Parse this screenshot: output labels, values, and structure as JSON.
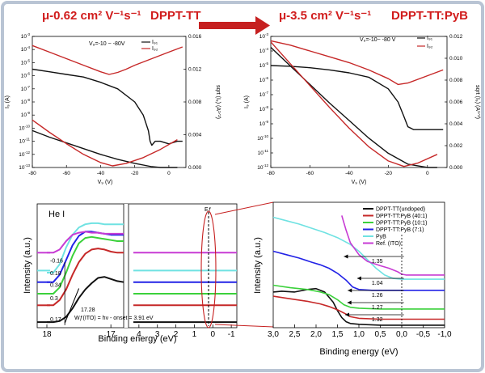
{
  "colors": {
    "black": "#111111",
    "red": "#c62828",
    "green": "#3bd13b",
    "blue": "#2222e6",
    "cyan": "#6fe2e2",
    "magenta": "#c73bd4",
    "arrow": "#c62020"
  },
  "top_left": {
    "mobility_label": "μ-0.62 cm² V⁻¹s⁻¹",
    "material_label": "DPPT-TT",
    "vg_label": "V₉=-10 ~ -80V",
    "xlabel": "V₉ (V)",
    "ylabel": "I₉ (A)",
    "ylabel_right": "sqrt (I₉) (A¹ᐟ²)",
    "legend": [
      "I₉₁",
      "I₉₂"
    ]
  },
  "top_right": {
    "mobility_label": "μ-3.5 cm² V⁻¹s⁻¹",
    "material_label": "DPPT-TT:PyB",
    "vg_label": "V₉=-10~ -80 V",
    "xlabel": "V₉ (V)",
    "ylabel": "I₉ (A)",
    "ylabel_right": "sqrt (I₉) (A¹ᐟ²)",
    "legend": [
      "I₉₁",
      "I₉₂"
    ]
  },
  "bottom_left": {
    "panel_label": "He I",
    "xlabel": "Binding energy (eV)",
    "ylabel": "Intensity (a.u.)",
    "ef_label": "Eƒ",
    "cutoff_labels": [
      "-0.16",
      "0.18",
      "0.34",
      "0.3",
      "0.17"
    ],
    "onset_value": "17.28",
    "wf_label": "Wƒ(ITO) = hν - onset = 3.91 eV"
  },
  "bottom_right": {
    "xlabel": "Binding energy (eV)",
    "ylabel": "Intensity (a.u.)",
    "onset_labels": [
      "1.35",
      "1.04",
      "1.26",
      "1.27",
      "1.32"
    ]
  },
  "chart_data": [
    {
      "type": "line",
      "name_id": "transfer-dppt-tt",
      "xlim": [
        -80,
        10
      ],
      "ylim_log": [
        -13,
        -3
      ],
      "ylim_right": [
        0,
        0.016
      ],
      "x_ticks": [
        -80,
        -60,
        -40,
        -20,
        0
      ],
      "y_ticks_exp": [
        -3,
        -4,
        -5,
        -6,
        -7,
        -8,
        -9,
        -10,
        -11,
        -12,
        -13
      ],
      "y_right_ticks": [
        0.0,
        0.004,
        0.008,
        0.012,
        0.016
      ],
      "series": [
        {
          "color": "black",
          "axis": "log",
          "x": [
            -80,
            -70,
            -60,
            -50,
            -40,
            -30,
            -20,
            -15,
            -12,
            -11,
            -10,
            -8,
            -5,
            0,
            5,
            8
          ],
          "y": [
            -5.5,
            -5.7,
            -5.9,
            -6.1,
            -6.5,
            -7.0,
            -8.0,
            -9.0,
            -10.2,
            -11.0,
            -11.3,
            -11.0,
            -11.0,
            -11.2,
            -11.0,
            -11.0
          ]
        },
        {
          "color": "red",
          "axis": "log",
          "x": [
            -80,
            -70,
            -60,
            -50,
            -40,
            -35,
            -30,
            -25,
            -20,
            -10,
            0,
            8
          ],
          "y": [
            -3.7,
            -4.2,
            -4.7,
            -5.2,
            -5.7,
            -5.9,
            -5.75,
            -5.5,
            -5.2,
            -4.7,
            -4.2,
            -3.8
          ]
        },
        {
          "color": "black",
          "axis": "sqrt",
          "x": [
            -80,
            -70,
            -60,
            -50,
            -40,
            -30,
            -20,
            -10,
            -5,
            0,
            5
          ],
          "y": [
            0.0045,
            0.0037,
            0.003,
            0.0023,
            0.0016,
            0.001,
            0.0005,
            0.0001,
            0.0,
            0.0,
            0.0
          ]
        },
        {
          "color": "red",
          "axis": "sqrt",
          "x": [
            -80,
            -70,
            -60,
            -50,
            -40,
            -33,
            -25,
            -15,
            -5,
            5
          ],
          "y": [
            0.0058,
            0.0043,
            0.0029,
            0.0016,
            0.0006,
            0.0002,
            0.0005,
            0.0012,
            0.0022,
            0.0034
          ]
        }
      ]
    },
    {
      "type": "line",
      "name_id": "transfer-dppt-tt-pyb",
      "xlim": [
        -80,
        10
      ],
      "ylim_log": [
        -12,
        -3
      ],
      "ylim_right": [
        0,
        0.012
      ],
      "x_ticks": [
        -80,
        -60,
        -40,
        -20,
        0
      ],
      "y_ticks_exp": [
        -3,
        -4,
        -5,
        -6,
        -7,
        -8,
        -9,
        -10,
        -11,
        -12
      ],
      "y_right_ticks": [
        0.0,
        0.002,
        0.004,
        0.006,
        0.008,
        0.01,
        0.012
      ],
      "series": [
        {
          "color": "black",
          "axis": "log",
          "x": [
            -80,
            -70,
            -60,
            -50,
            -40,
            -30,
            -20,
            -15,
            -12,
            -10,
            -7,
            -5,
            0,
            5,
            8
          ],
          "y": [
            -5.0,
            -5.05,
            -5.15,
            -5.3,
            -5.5,
            -5.8,
            -6.6,
            -7.5,
            -8.5,
            -9.2,
            -9.4,
            -9.4,
            -9.4,
            -9.4,
            -9.4
          ]
        },
        {
          "color": "red",
          "axis": "log",
          "x": [
            -80,
            -70,
            -60,
            -50,
            -40,
            -30,
            -20,
            -15,
            -10,
            0,
            8
          ],
          "y": [
            -3.3,
            -3.6,
            -4.0,
            -4.4,
            -4.8,
            -5.3,
            -5.9,
            -6.3,
            -6.2,
            -5.7,
            -5.3
          ]
        },
        {
          "color": "black",
          "axis": "sqrt",
          "x": [
            -80,
            -70,
            -60,
            -50,
            -40,
            -30,
            -20,
            -10,
            0,
            5
          ],
          "y": [
            0.011,
            0.0093,
            0.0076,
            0.0059,
            0.0043,
            0.0027,
            0.0013,
            0.0003,
            0.0,
            0.0
          ]
        },
        {
          "color": "red",
          "axis": "sqrt",
          "x": [
            -80,
            -70,
            -60,
            -50,
            -40,
            -30,
            -20,
            -12,
            -5,
            5
          ],
          "y": [
            0.0115,
            0.0095,
            0.0075,
            0.0055,
            0.0036,
            0.0019,
            0.0006,
            0.0001,
            0.0004,
            0.0012
          ]
        }
      ]
    },
    {
      "type": "line",
      "name_id": "ups-cutoff-and-valence",
      "x_ticks_left": [
        18,
        17
      ],
      "x_ticks_right": [
        4,
        3,
        2,
        1,
        0,
        -1
      ],
      "series": [
        {
          "color": "black",
          "x": [
            18.0,
            17.9,
            17.8,
            17.7,
            17.6,
            17.5,
            17.4,
            17.3,
            17.2,
            17.1,
            17.0,
            16.9,
            16.8
          ],
          "y": [
            0.03,
            0.03,
            0.04,
            0.08,
            0.16,
            0.26,
            0.34,
            0.4,
            0.45,
            0.46,
            0.44,
            0.42,
            0.41
          ],
          "vb_y": 0.03
        },
        {
          "color": "red",
          "x": [
            18.0,
            17.9,
            17.8,
            17.7,
            17.6,
            17.5,
            17.4,
            17.3,
            17.2,
            17.1,
            17.0,
            16.9,
            16.8
          ],
          "y": [
            0.19,
            0.19,
            0.24,
            0.34,
            0.48,
            0.6,
            0.68,
            0.72,
            0.73,
            0.72,
            0.7,
            0.69,
            0.69
          ],
          "vb_y": 0.19
        },
        {
          "color": "green",
          "x": [
            18.0,
            17.9,
            17.8,
            17.7,
            17.6,
            17.5,
            17.4,
            17.3,
            17.2,
            17.1,
            17.0,
            16.9,
            16.8
          ],
          "y": [
            0.3,
            0.3,
            0.36,
            0.5,
            0.66,
            0.78,
            0.83,
            0.84,
            0.83,
            0.82,
            0.81,
            0.8,
            0.8
          ],
          "vb_y": 0.3
        },
        {
          "color": "blue",
          "x": [
            18.0,
            17.9,
            17.8,
            17.7,
            17.6,
            17.5,
            17.4,
            17.3,
            17.2,
            17.1,
            17.0,
            16.9,
            16.8
          ],
          "y": [
            0.41,
            0.41,
            0.48,
            0.62,
            0.76,
            0.85,
            0.89,
            0.89,
            0.88,
            0.87,
            0.86,
            0.86,
            0.86
          ],
          "vb_y": 0.41
        },
        {
          "color": "cyan",
          "x": [
            18.0,
            17.9,
            17.8,
            17.7,
            17.6,
            17.5,
            17.4,
            17.3,
            17.2,
            17.1,
            17.0,
            16.9,
            16.8
          ],
          "y": [
            0.5,
            0.5,
            0.58,
            0.74,
            0.86,
            0.93,
            0.96,
            0.97,
            0.97,
            0.96,
            0.96,
            0.96,
            0.96
          ],
          "vb_y": 0.52
        },
        {
          "color": "magenta",
          "x": [
            18.0,
            17.9,
            17.8,
            17.7,
            17.6,
            17.5,
            17.4,
            17.3,
            17.2,
            17.1,
            17.0,
            16.9,
            16.8
          ],
          "y": [
            0.69,
            0.69,
            0.72,
            0.8,
            0.86,
            0.88,
            0.89,
            0.88,
            0.88,
            0.87,
            0.87,
            0.87,
            0.87
          ],
          "vb_y": 0.69
        }
      ]
    },
    {
      "type": "line",
      "name_id": "ups-valence-zoom",
      "xlim": [
        3.0,
        -1.0
      ],
      "x_ticks": [
        "3,0",
        "2,5",
        "2,0",
        "1,5",
        "1,0",
        "0,5",
        "0,0",
        "-0,5",
        "-1,0"
      ],
      "x_tick_values": [
        3.0,
        2.5,
        2.0,
        1.5,
        1.0,
        0.5,
        0.0,
        -0.5,
        -1.0
      ],
      "legend": [
        "DPPT-TT(undoped)",
        "DPPT-TT:PyB (40:1)",
        "DPPT-TT:PyB (10:1)",
        "DPPT-TT:PyB (7:1)",
        "PyB",
        "Ref. (ITO)"
      ],
      "legend_colors": [
        "black",
        "red",
        "green",
        "blue",
        "cyan",
        "magenta"
      ],
      "series": [
        {
          "name": "DPPT-TT(undoped)",
          "color": "black",
          "x": [
            3.0,
            2.8,
            2.5,
            2.2,
            2.0,
            1.8,
            1.6,
            1.5,
            1.4,
            1.3,
            1.2,
            1.0,
            0.5,
            0.0,
            -1.0
          ],
          "y": [
            0.42,
            0.43,
            0.42,
            0.45,
            0.46,
            0.42,
            0.3,
            0.2,
            0.12,
            0.07,
            0.05,
            0.04,
            0.03,
            0.03,
            0.03
          ]
        },
        {
          "name": "DPPT-TT:PyB (40:1)",
          "color": "red",
          "x": [
            3.0,
            2.6,
            2.2,
            1.9,
            1.7,
            1.5,
            1.3,
            1.2,
            1.0,
            0.5,
            0.0,
            -1.0
          ],
          "y": [
            0.37,
            0.34,
            0.31,
            0.28,
            0.25,
            0.21,
            0.16,
            0.13,
            0.11,
            0.1,
            0.1,
            0.1
          ]
        },
        {
          "name": "DPPT-TT:PyB (10:1)",
          "color": "green",
          "x": [
            3.0,
            2.6,
            2.2,
            1.9,
            1.7,
            1.5,
            1.35,
            1.2,
            1.0,
            0.5,
            0.0,
            -1.0
          ],
          "y": [
            0.5,
            0.47,
            0.45,
            0.42,
            0.39,
            0.33,
            0.27,
            0.24,
            0.23,
            0.22,
            0.22,
            0.22
          ]
        },
        {
          "name": "DPPT-TT:PyB (7:1)",
          "color": "blue",
          "x": [
            3.0,
            2.7,
            2.4,
            2.1,
            1.9,
            1.7,
            1.5,
            1.3,
            1.15,
            1.0,
            0.7,
            0.3,
            0.0,
            -1.0
          ],
          "y": [
            0.9,
            0.86,
            0.82,
            0.77,
            0.74,
            0.7,
            0.64,
            0.56,
            0.48,
            0.45,
            0.44,
            0.44,
            0.44,
            0.44
          ]
        },
        {
          "name": "PyB",
          "color": "cyan",
          "x": [
            3.0,
            2.7,
            2.4,
            2.1,
            1.8,
            1.5,
            1.2,
            1.0,
            0.8,
            0.6,
            0.4,
            0.2,
            0.0,
            -1.0
          ],
          "y": [
            1.3,
            1.26,
            1.22,
            1.17,
            1.12,
            1.06,
            0.98,
            0.9,
            0.8,
            0.7,
            0.62,
            0.58,
            0.57,
            0.57
          ]
        },
        {
          "name": "Ref. (ITO)",
          "color": "magenta",
          "x": [
            1.4,
            1.3,
            1.2,
            1.0,
            0.8,
            0.5,
            0.3,
            0.1,
            0.0,
            -0.1,
            -0.5,
            -1.0
          ],
          "y": [
            1.32,
            1.15,
            1.0,
            0.86,
            0.78,
            0.73,
            0.7,
            0.66,
            0.63,
            0.62,
            0.62,
            0.62
          ]
        }
      ]
    }
  ]
}
